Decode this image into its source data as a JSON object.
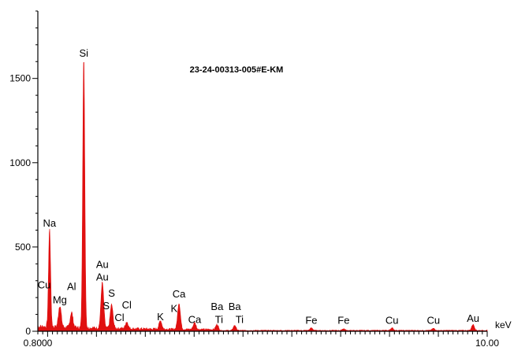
{
  "chart_data": {
    "type": "area",
    "title": "23-24-00313-005#E-KM",
    "xlabel": "keV",
    "ylabel": "",
    "xlim": [
      0.8,
      10.0
    ],
    "ylim": [
      0,
      1900
    ],
    "grid": false,
    "color": "#e01010",
    "x_tick_labels": [
      {
        "value": 0.8,
        "label": "0.8000"
      },
      {
        "value": 10.0,
        "label": "10.00"
      }
    ],
    "y_ticks": [
      0,
      500,
      1000,
      1500
    ],
    "peaks": [
      {
        "x": 1.04,
        "y": 580
      },
      {
        "x": 1.25,
        "y": 130
      },
      {
        "x": 1.49,
        "y": 90
      },
      {
        "x": 1.74,
        "y": 1600
      },
      {
        "x": 2.12,
        "y": 270
      },
      {
        "x": 2.31,
        "y": 140
      },
      {
        "x": 2.62,
        "y": 40
      },
      {
        "x": 3.31,
        "y": 50
      },
      {
        "x": 3.69,
        "y": 155
      },
      {
        "x": 4.01,
        "y": 40
      },
      {
        "x": 4.47,
        "y": 30
      },
      {
        "x": 4.83,
        "y": 30
      },
      {
        "x": 6.4,
        "y": 15
      },
      {
        "x": 7.06,
        "y": 10
      },
      {
        "x": 8.05,
        "y": 15
      },
      {
        "x": 8.9,
        "y": 12
      },
      {
        "x": 9.71,
        "y": 35
      }
    ],
    "annotations": [
      {
        "label": "Si",
        "x": 1.74,
        "y": 1630
      },
      {
        "label": "Na",
        "x": 1.04,
        "y": 620
      },
      {
        "label": "Cu",
        "x": 0.93,
        "y": 255
      },
      {
        "label": "Mg",
        "x": 1.25,
        "y": 165
      },
      {
        "label": "Al",
        "x": 1.49,
        "y": 245
      },
      {
        "label": "Au",
        "x": 2.12,
        "y": 375
      },
      {
        "label": "Au",
        "x": 2.12,
        "y": 300
      },
      {
        "label": "S",
        "x": 2.31,
        "y": 205
      },
      {
        "label": "S",
        "x": 2.2,
        "y": 130
      },
      {
        "label": "Cl",
        "x": 2.62,
        "y": 135
      },
      {
        "label": "Cl",
        "x": 2.47,
        "y": 60
      },
      {
        "label": "K",
        "x": 3.31,
        "y": 65
      },
      {
        "label": "K",
        "x": 3.59,
        "y": 115
      },
      {
        "label": "Ca",
        "x": 3.69,
        "y": 200
      },
      {
        "label": "Ca",
        "x": 4.01,
        "y": 50
      },
      {
        "label": "Ba",
        "x": 4.47,
        "y": 125
      },
      {
        "label": "Ti",
        "x": 4.51,
        "y": 50
      },
      {
        "label": "Ba",
        "x": 4.83,
        "y": 125
      },
      {
        "label": "Ti",
        "x": 4.93,
        "y": 50
      },
      {
        "label": "Fe",
        "x": 6.4,
        "y": 45
      },
      {
        "label": "Fe",
        "x": 7.06,
        "y": 45
      },
      {
        "label": "Cu",
        "x": 8.05,
        "y": 45
      },
      {
        "label": "Cu",
        "x": 8.9,
        "y": 45
      },
      {
        "label": "Au",
        "x": 9.71,
        "y": 55
      }
    ]
  }
}
